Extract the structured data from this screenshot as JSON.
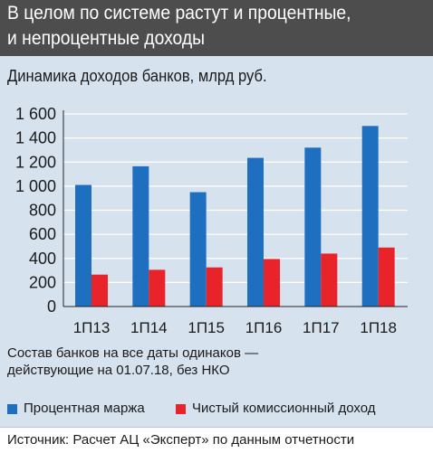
{
  "title": "В целом по системе растут и процентные,\nи непроцентные доходы",
  "subtitle": "Динамика доходов банков, млрд руб.",
  "note": "Состав банков на все даты одинаков —\nдействующие на 01.07.18, без НКО",
  "source": "Источник: Расчет АЦ «Эксперт» по данным отчетности",
  "colors": {
    "header_bg": "#4d4d4d",
    "panel_bg": "#d7e2ef",
    "series_1": "#1f6fc0",
    "series_2": "#e8232a",
    "gridline": "#ffffff",
    "axis": "#222222"
  },
  "legend": [
    {
      "label": "Процентная маржа",
      "color": "#1f6fc0"
    },
    {
      "label": "Чистый комиссионный доход",
      "color": "#e8232a"
    }
  ],
  "chart_data": {
    "type": "bar",
    "categories": [
      "1П13",
      "1П14",
      "1П15",
      "1П16",
      "1П17",
      "1П18"
    ],
    "series": [
      {
        "name": "Процентная маржа",
        "values": [
          1010,
          1165,
          950,
          1235,
          1320,
          1500
        ],
        "color": "#1f6fc0"
      },
      {
        "name": "Чистый комиссионный доход",
        "values": [
          265,
          305,
          325,
          395,
          440,
          490
        ],
        "color": "#e8232a"
      }
    ],
    "ylim": [
      0,
      1600
    ],
    "yticks": [
      0,
      200,
      400,
      600,
      800,
      1000,
      1200,
      1400,
      1600
    ],
    "ytick_labels": [
      "0",
      "200",
      "400",
      "600",
      "800",
      "1 000",
      "1 200",
      "1 400",
      "1 600"
    ],
    "grid": true,
    "legend_position": "bottom"
  }
}
